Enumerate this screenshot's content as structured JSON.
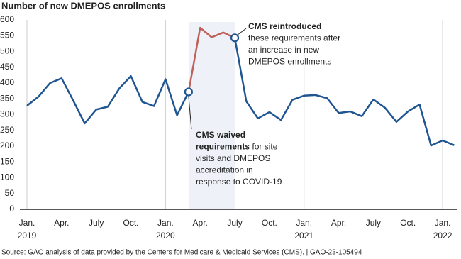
{
  "chart_data": {
    "type": "line",
    "title": "Number of new DMEPOS enrollments",
    "source": "Source: GAO analysis of data provided by the Centers for Medicare & Medicaid Services (CMS).  |  GAO-23-105494",
    "categories": [
      "Jan. 2019",
      null,
      null,
      "Apr.",
      null,
      null,
      "July",
      null,
      null,
      "Oct.",
      null,
      null,
      "Jan. 2020",
      null,
      null,
      "Apr.",
      null,
      null,
      "July",
      null,
      null,
      "Oct.",
      null,
      null,
      "Jan. 2021",
      null,
      null,
      "Apr.",
      null,
      null,
      "July",
      null,
      null,
      "Oct.",
      null,
      null,
      "Jan. 2022",
      null
    ],
    "series": [
      {
        "color": "#1f5591",
        "values": [
          328,
          357,
          400,
          415,
          345,
          272,
          316,
          325,
          383,
          422,
          340,
          327,
          412,
          298,
          372,
          null,
          null,
          null,
          543,
          342,
          288,
          308,
          283,
          347,
          360,
          362,
          352,
          305,
          310,
          295,
          348,
          322,
          277,
          310,
          332,
          202,
          218,
          203
        ]
      },
      {
        "color": "#c0605a",
        "values": [
          null,
          null,
          null,
          null,
          null,
          null,
          null,
          null,
          null,
          null,
          null,
          null,
          null,
          null,
          372,
          575,
          545,
          560,
          543,
          null,
          null,
          null,
          null,
          null,
          null,
          null,
          null,
          null,
          null,
          null,
          null,
          null,
          null,
          null,
          null,
          null,
          null,
          null
        ]
      }
    ],
    "ylim": [
      0,
      600
    ],
    "yticks": [
      0,
      50,
      100,
      150,
      200,
      250,
      300,
      350,
      400,
      450,
      500,
      550,
      600
    ],
    "annotations": [
      {
        "lines": [
          [
            {
              "text": "CMS reintroduced",
              "bold": true
            }
          ],
          [
            {
              "text": "these requirements after",
              "bold": false
            }
          ],
          [
            {
              "text": "an increase in new",
              "bold": false
            }
          ],
          [
            {
              "text": "DMEPOS enrollments",
              "bold": false
            }
          ]
        ]
      },
      {
        "lines": [
          [
            {
              "text": "CMS waived",
              "bold": true
            }
          ],
          [
            {
              "text": "requirements",
              "bold": true
            },
            {
              "text": " for site",
              "bold": false
            }
          ],
          [
            {
              "text": "visits and DMEPOS",
              "bold": false
            }
          ],
          [
            {
              "text": "accreditation in",
              "bold": false
            }
          ],
          [
            {
              "text": "response to COVID-19",
              "bold": false
            }
          ]
        ]
      }
    ]
  }
}
